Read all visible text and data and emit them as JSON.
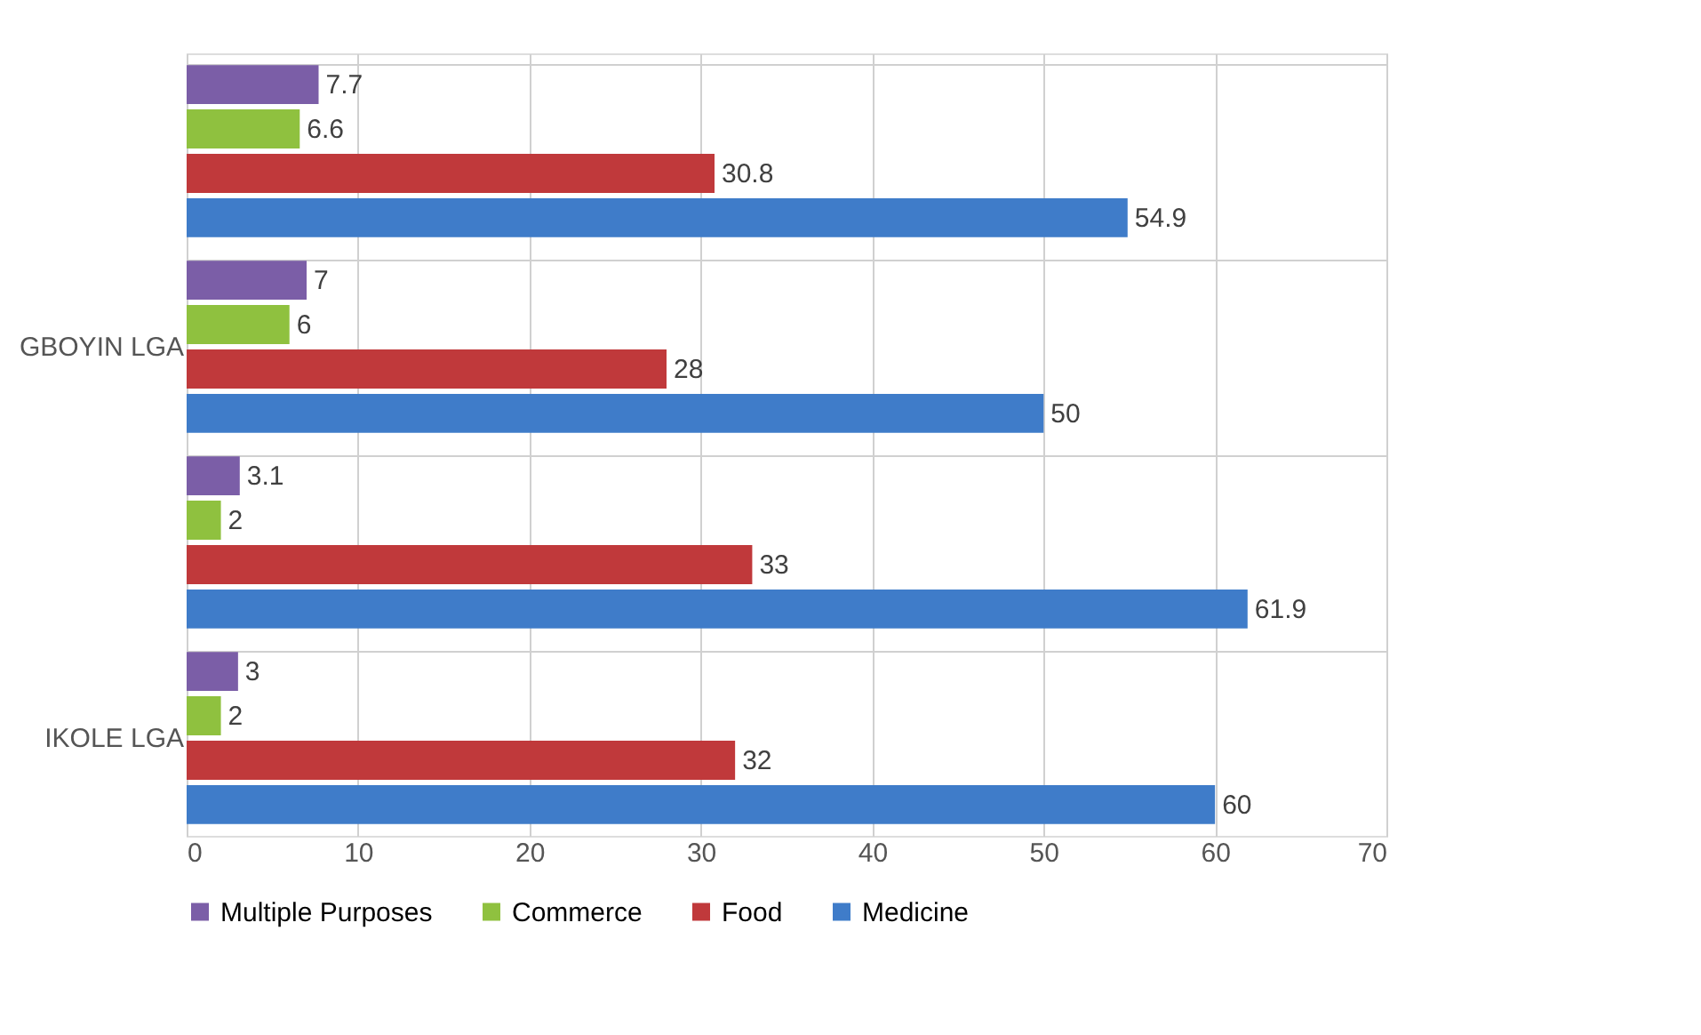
{
  "chart_data": {
    "type": "bar",
    "orientation": "horizontal",
    "categories": [
      null,
      "GBOYIN LGA",
      null,
      "IKOLE LGA"
    ],
    "series": [
      {
        "name": "Multiple Purposes",
        "color": "#7b5ea7",
        "values": [
          7.7,
          7,
          3.1,
          3
        ]
      },
      {
        "name": "Commerce",
        "color": "#8fc13f",
        "values": [
          6.6,
          6,
          2,
          2
        ]
      },
      {
        "name": "Food",
        "color": "#c0393b",
        "values": [
          30.8,
          28,
          33,
          32
        ]
      },
      {
        "name": "Medicine",
        "color": "#3f7cc9",
        "values": [
          54.9,
          50,
          61.9,
          60
        ]
      }
    ],
    "xlim": [
      0,
      70
    ],
    "xticks": [
      0,
      10,
      20,
      30,
      40,
      50,
      60,
      70
    ],
    "grid": true,
    "legend": "bottom",
    "data_labels": true
  }
}
